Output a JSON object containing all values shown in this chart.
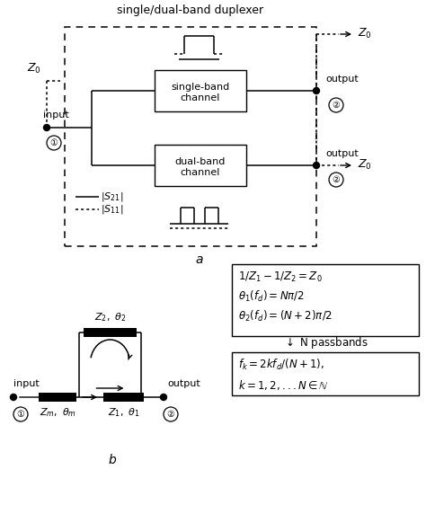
{
  "bg_color": "#ffffff",
  "title_a": "single/dual-band duplexer",
  "label_a": "a",
  "label_b": "b"
}
